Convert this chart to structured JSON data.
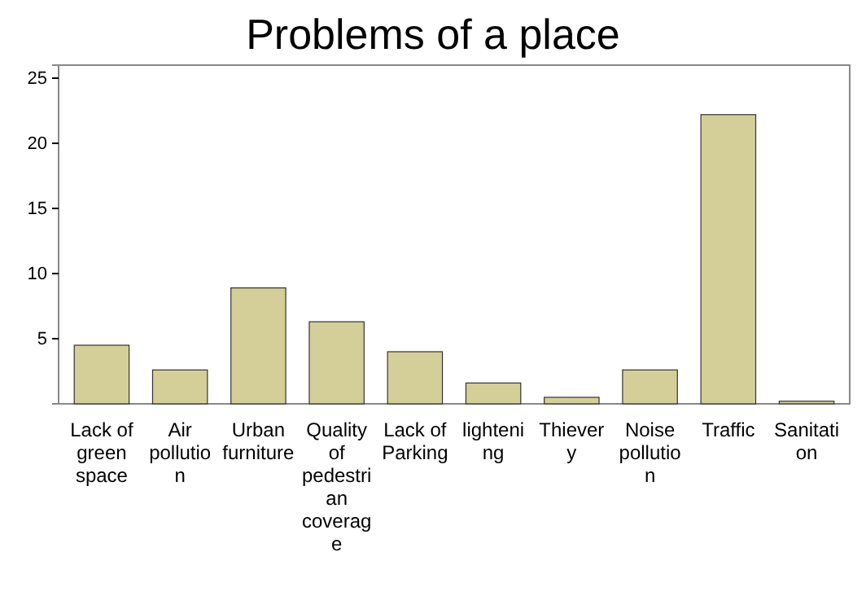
{
  "chart_data": {
    "type": "bar",
    "title": "Problems of a place",
    "categories": [
      "Lack of green space",
      "Air pollution",
      "Urban furniture",
      "Quality of pedestrian coverage",
      "Lack of Parking",
      "lightening",
      "Thievery",
      "Noise pollution",
      "Traffic",
      "Sanitation"
    ],
    "values": [
      4.5,
      2.6,
      8.9,
      6.3,
      4.0,
      1.6,
      0.5,
      2.6,
      22.2,
      0.2
    ],
    "color": "#d4cf98",
    "ylim": [
      0,
      26
    ],
    "yticks": [
      5,
      10,
      15,
      20,
      25
    ],
    "grid": false
  }
}
